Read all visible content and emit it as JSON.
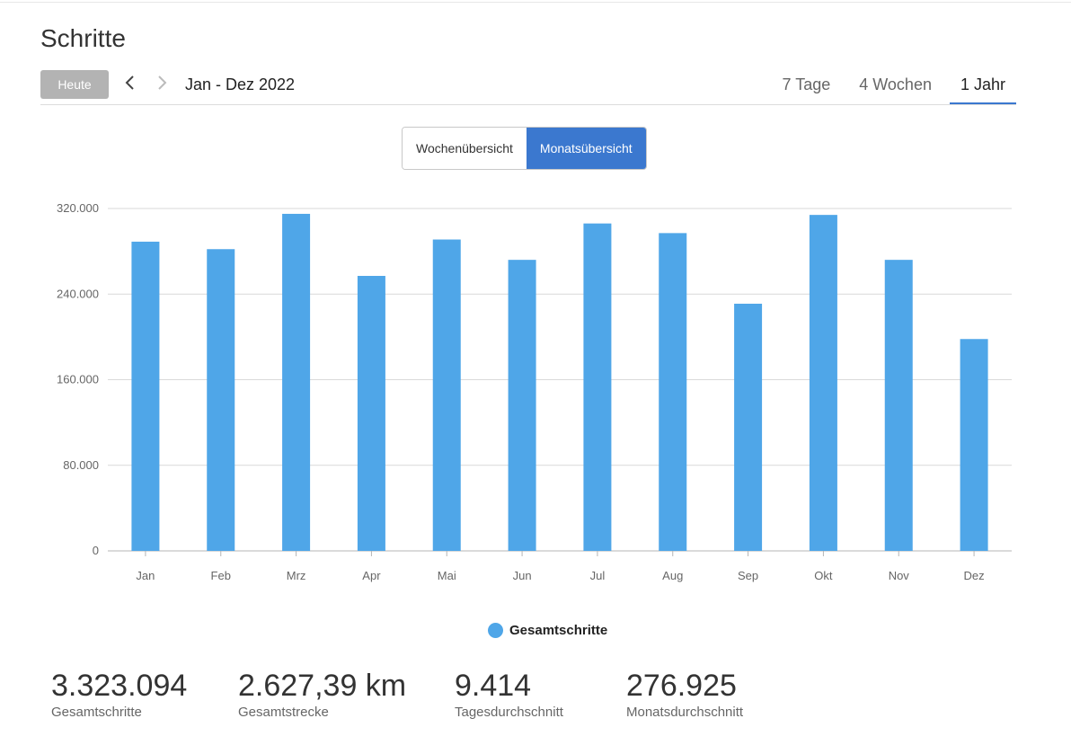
{
  "page": {
    "title": "Schritte"
  },
  "toolbar": {
    "today_label": "Heute",
    "date_range": "Jan - Dez 2022",
    "period_tabs": [
      {
        "label": "7 Tage",
        "active": false
      },
      {
        "label": "4 Wochen",
        "active": false
      },
      {
        "label": "1 Jahr",
        "active": true
      }
    ]
  },
  "view_toggle": {
    "week_label": "Wochenübersicht",
    "month_label": "Monatsübersicht",
    "active": "month"
  },
  "chart_data": {
    "type": "bar",
    "categories": [
      "Jan",
      "Feb",
      "Mrz",
      "Apr",
      "Mai",
      "Jun",
      "Jul",
      "Aug",
      "Sep",
      "Okt",
      "Nov",
      "Dez"
    ],
    "series": [
      {
        "name": "Gesamtschritte",
        "color": "#4fa6e8",
        "values": [
          289000,
          282000,
          315000,
          257000,
          291000,
          272000,
          306000,
          297000,
          231000,
          314000,
          272000,
          198000
        ]
      }
    ],
    "yticks": [
      0,
      80000,
      160000,
      240000,
      320000
    ],
    "ytick_labels": [
      "0",
      "80.000",
      "160.000",
      "240.000",
      "320.000"
    ],
    "ylim": [
      0,
      320000
    ],
    "grid": true,
    "legend": "bottom-center"
  },
  "stats": [
    {
      "value": "3.323.094",
      "label": "Gesamtschritte"
    },
    {
      "value": "2.627,39 km",
      "label": "Gesamtstrecke"
    },
    {
      "value": "9.414",
      "label": "Tagesdurchschnitt"
    },
    {
      "value": "276.925",
      "label": "Monatsdurchschnitt"
    }
  ]
}
